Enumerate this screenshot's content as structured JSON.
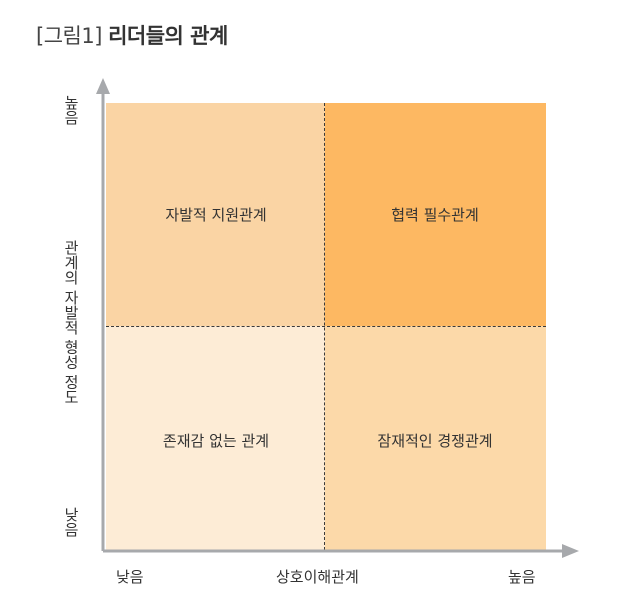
{
  "figure": {
    "number": "[그림1]",
    "title": "리더들의 관계"
  },
  "quadrants": {
    "top_left": "자발적 지원관계",
    "top_right": "협력 필수관계",
    "bottom_left": "존재감 없는 관계",
    "bottom_right": "잠재적인 경쟁관계"
  },
  "y_axis": {
    "label": "관계의 자발적 형성 정도",
    "high": "높음",
    "low": "낮음"
  },
  "x_axis": {
    "label": "상호이해관계",
    "low": "낮음",
    "high": "높음"
  },
  "colors": {
    "top_left": "#fad4a4",
    "top_right": "#fdb862",
    "bottom_left": "#fdecd6",
    "bottom_right": "#fcd9a9",
    "axis": "#a7a9ac"
  }
}
